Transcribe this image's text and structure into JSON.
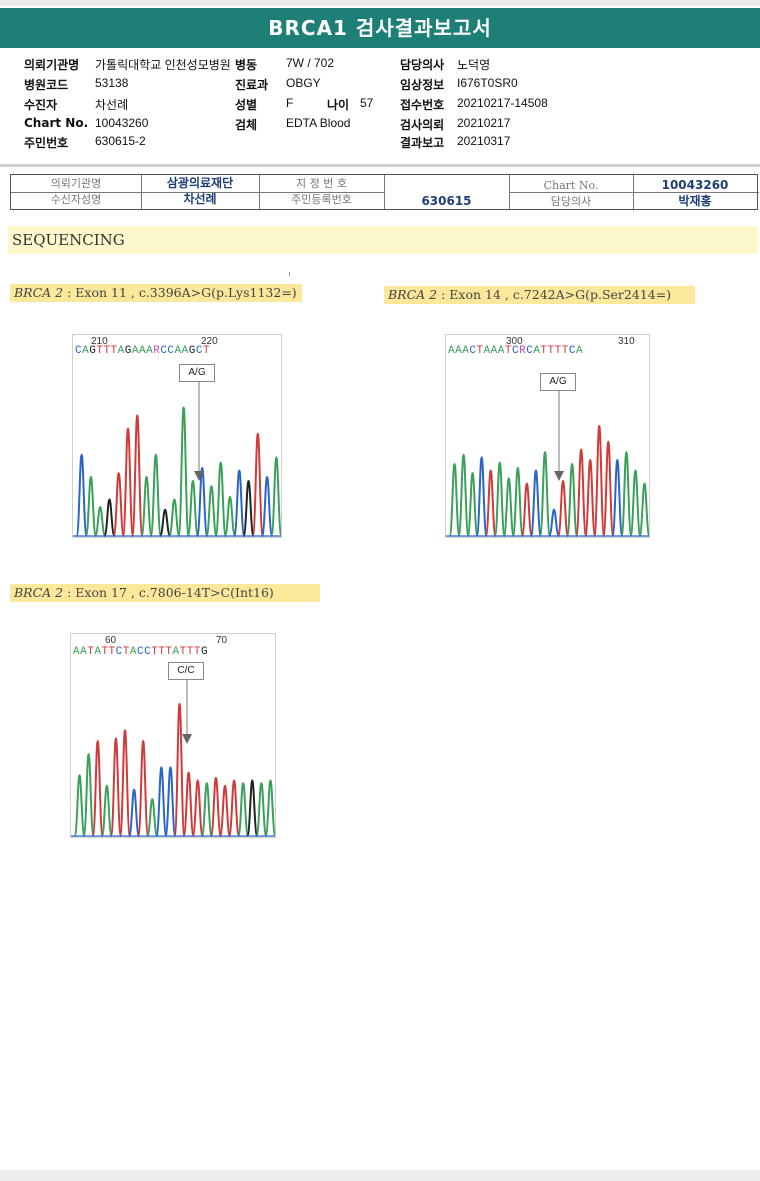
{
  "report": {
    "title": "BRCA1 검사결과보고서"
  },
  "patient": {
    "institution_label": "의뢰기관명",
    "institution": "가톨릭대학교 인천성모병원",
    "ward_label": "병동",
    "ward": "7W / 702",
    "doctor_label": "담당의사",
    "doctor": "노덕영",
    "hospital_code_label": "병원코드",
    "hospital_code": "53138",
    "dept_label": "진료과",
    "dept": "OBGY",
    "clinical_label": "임상정보",
    "clinical": "I676T0SR0",
    "recipient_label": "수진자",
    "recipient": "차선례",
    "sex_label": "성별",
    "sex": "F",
    "age_label": "나이",
    "age": "57",
    "receipt_label": "접수번호",
    "receipt": "20210217-14508",
    "chart_label": "Chart No.",
    "chart": "10043260",
    "specimen_label": "검체",
    "specimen": "EDTA Blood",
    "request_label": "검사의뢰",
    "request": "20210217",
    "id_label": "주민번호",
    "id": "630615-2",
    "report_date_label": "결과보고",
    "report_date": "20210317"
  },
  "stamp": {
    "inst_label": "의뢰기관명",
    "inst_value": "삼광의료재단",
    "designation_label": "지 정 번 호",
    "designation_value": "",
    "chart_label": "Chart No.",
    "chart_value": "10043260",
    "name_label": "수신자성명",
    "name_value": "차선례",
    "resident_label": "주민등록번호",
    "resident_value": "630615",
    "doctor_label": "담당의사",
    "doctor_value": "박재홍"
  },
  "section": {
    "title": "SEQUENCING"
  },
  "traces": [
    {
      "gene": "BRCA 2",
      "caption": " : Exon 11 , c.3396A>G(p.Lys1132=)",
      "pos_left": "210",
      "pos_right": "220",
      "bases": "CAGTTTAGAAARCCAAGCT",
      "genotype": "A/G",
      "peak_colors": [
        "#2a64c8",
        "#3aa05a",
        "#3aa05a",
        "#222",
        "#d23a3a",
        "#d23a3a",
        "#d23a3a",
        "#3aa05a",
        "#3aa05a",
        "#222",
        "#3aa05a",
        "#3aa05a",
        "#3aa05a",
        "#2a64c8",
        "#3aa05a",
        "#3aa05a",
        "#3aa05a",
        "#2a64c8",
        "#222",
        "#d23a3a"
      ],
      "peak_heights": [
        0.62,
        0.45,
        0.22,
        0.28,
        0.48,
        0.82,
        0.92,
        0.45,
        0.62,
        0.2,
        0.28,
        0.98,
        0.42,
        0.52,
        0.38,
        0.56,
        0.3,
        0.5,
        0.42,
        0.78,
        0.45,
        0.6
      ]
    },
    {
      "gene": "BRCA 2",
      "caption": " : Exon 14 , c.7242A>G(p.Ser2414=)",
      "pos_left": "300",
      "pos_right": "310",
      "bases": "AAACTAAATCRCATTTTCA",
      "genotype": "A/G",
      "peak_colors": [
        "#3aa05a",
        "#3aa05a",
        "#3aa05a",
        "#2a64c8",
        "#d23a3a",
        "#3aa05a",
        "#3aa05a",
        "#3aa05a",
        "#d23a3a",
        "#2a64c8",
        "#3aa05a",
        "#2a64c8",
        "#d23a3a",
        "#3aa05a",
        "#d23a3a",
        "#d23a3a",
        "#d23a3a",
        "#d23a3a",
        "#2a64c8",
        "#3aa05a"
      ],
      "peak_heights": [
        0.55,
        0.62,
        0.48,
        0.6,
        0.5,
        0.56,
        0.44,
        0.52,
        0.4,
        0.5,
        0.64,
        0.2,
        0.42,
        0.55,
        0.66,
        0.58,
        0.84,
        0.72,
        0.58,
        0.64,
        0.5,
        0.4
      ]
    },
    {
      "gene": "BRCA 2",
      "caption": " : Exon 17 , c.7806-14T>C(Int16)",
      "pos_left": "60",
      "pos_right": "70",
      "bases": "AATATTCTACCTTTATTTG",
      "genotype": "C/C",
      "peak_colors": [
        "#3aa05a",
        "#3aa05a",
        "#d23a3a",
        "#3aa05a",
        "#d23a3a",
        "#d23a3a",
        "#2a64c8",
        "#d23a3a",
        "#3aa05a",
        "#2a64c8",
        "#2a64c8",
        "#d23a3a",
        "#d23a3a",
        "#d23a3a",
        "#3aa05a",
        "#d23a3a",
        "#d23a3a",
        "#d23a3a",
        "#3aa05a",
        "#222"
      ],
      "peak_heights": [
        0.46,
        0.62,
        0.72,
        0.38,
        0.74,
        0.8,
        0.35,
        0.72,
        0.28,
        0.52,
        0.52,
        1.0,
        0.48,
        0.42,
        0.4,
        0.44,
        0.38,
        0.42,
        0.4,
        0.42,
        0.4,
        0.42
      ]
    }
  ]
}
